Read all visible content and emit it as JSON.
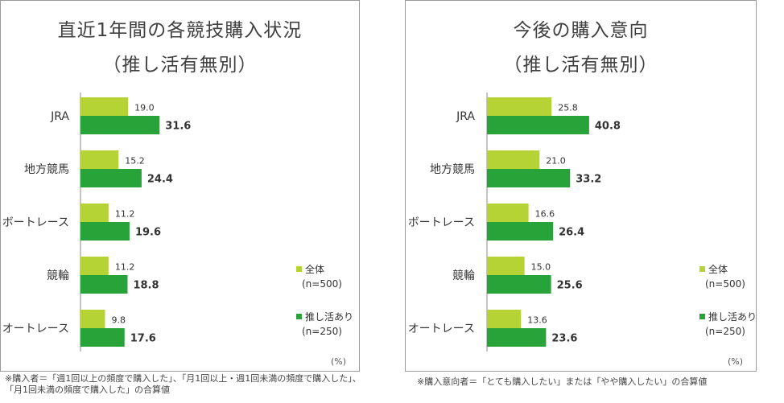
{
  "unit_label": "(%)",
  "legend": [
    {
      "name": "全体",
      "n": "(n=500)",
      "color": "#b5d334"
    },
    {
      "name": "推し活あり",
      "n": "(n=250)",
      "color": "#27a339"
    }
  ],
  "left": {
    "title_line1": "直近1年間の各競技購入状況",
    "title_line2": "（推し活有無別）",
    "note_line1": "※購入者＝「週1回以上の頻度で購入した」、「月1回以上・週1回未満の頻度で購入した」、",
    "note_line2": "「月1回未満の頻度で購入した」の合算値"
  },
  "right": {
    "title_line1": "今後の購入意向",
    "title_line2": "（推し活有無別）",
    "note_line1": "※購入意向者＝「とても購入したい」または「やや購入したい」の合算値"
  },
  "chart_data": [
    {
      "type": "bar",
      "orientation": "horizontal",
      "title": "直近1年間の各競技購入状況（推し活有無別）",
      "unit": "%",
      "categories": [
        "JRA",
        "地方競馬",
        "ボートレース",
        "競輪",
        "オートレース"
      ],
      "series": [
        {
          "name": "全体",
          "n": "(n=500)",
          "values": [
            19.0,
            15.2,
            11.2,
            11.2,
            9.8
          ]
        },
        {
          "name": "推し活あり",
          "n": "(n=250)",
          "values": [
            31.6,
            24.4,
            19.6,
            18.8,
            17.6
          ]
        }
      ],
      "xlim": [
        0,
        100
      ],
      "grid": false
    },
    {
      "type": "bar",
      "orientation": "horizontal",
      "title": "今後の購入意向（推し活有無別）",
      "unit": "%",
      "categories": [
        "JRA",
        "地方競馬",
        "ボートレース",
        "競輪",
        "オートレース"
      ],
      "series": [
        {
          "name": "全体",
          "n": "(n=500)",
          "values": [
            25.8,
            21.0,
            16.6,
            15.0,
            13.6
          ]
        },
        {
          "name": "推し活あり",
          "n": "(n=250)",
          "values": [
            40.8,
            33.2,
            26.4,
            25.6,
            23.6
          ]
        }
      ],
      "xlim": [
        0,
        100
      ],
      "grid": false
    }
  ]
}
